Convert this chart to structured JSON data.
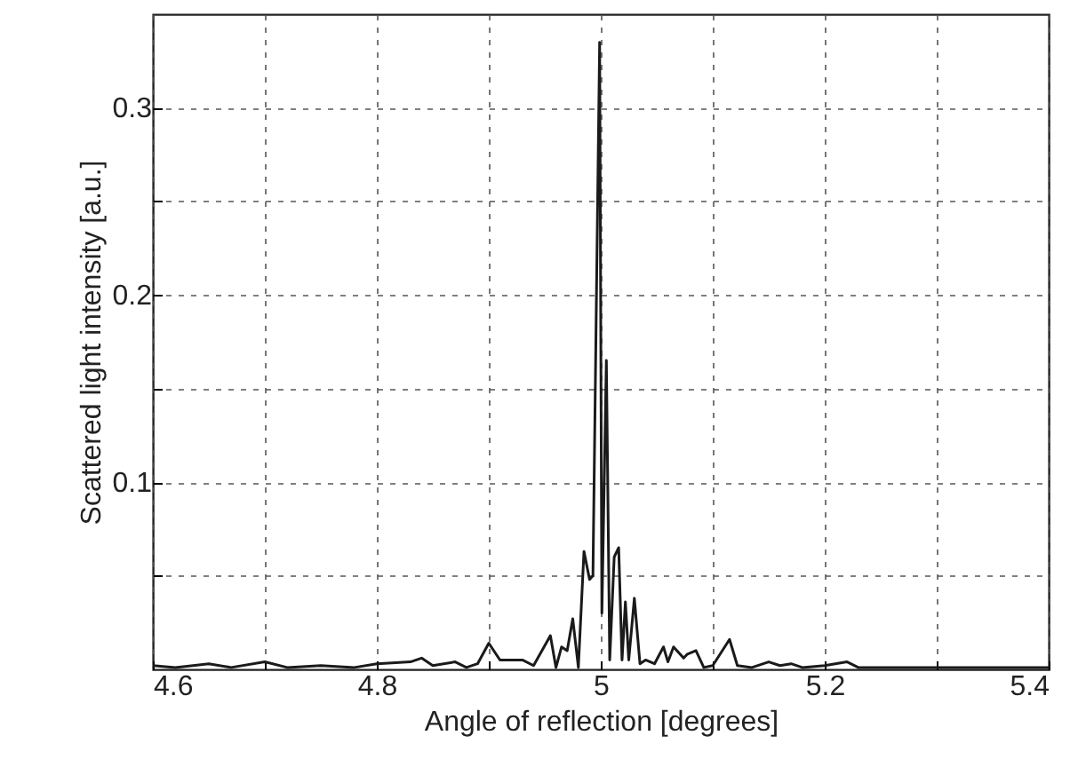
{
  "chart_data": {
    "type": "line",
    "xlabel": "Angle of reflection [degrees]",
    "ylabel": "Scattered light intensity [a.u.]",
    "xlim": [
      4.6,
      5.4
    ],
    "ylim": [
      0,
      0.35
    ],
    "xticks": [
      4.6,
      {
        "value": 4.7,
        "label": null
      },
      4.8,
      {
        "value": 4.9,
        "label": null
      },
      5,
      {
        "value": 5.1,
        "label": null
      },
      5.2,
      {
        "value": 5.3,
        "label": null
      },
      5.4
    ],
    "yticks": [
      {
        "value": 0.05,
        "label": null
      },
      0.1,
      {
        "value": 0.15,
        "label": null
      },
      0.2,
      {
        "value": 0.25,
        "label": null
      },
      0.3
    ],
    "grid": true,
    "line_style": "solid",
    "marker": "none",
    "series": [
      {
        "color": "#1a1a1a",
        "x": [
          4.6,
          4.62,
          4.65,
          4.67,
          4.7,
          4.72,
          4.75,
          4.78,
          4.8,
          4.83,
          4.84,
          4.85,
          4.87,
          4.88,
          4.89,
          4.9,
          4.91,
          4.93,
          4.94,
          4.955,
          4.96,
          4.965,
          4.97,
          4.975,
          4.98,
          4.985,
          4.99,
          4.993,
          4.999,
          5.001,
          5.005,
          5.008,
          5.012,
          5.016,
          5.019,
          5.022,
          5.025,
          5.03,
          5.035,
          5.04,
          5.048,
          5.056,
          5.06,
          5.065,
          5.074,
          5.077,
          5.085,
          5.092,
          5.1,
          5.115,
          5.122,
          5.135,
          5.15,
          5.16,
          5.17,
          5.18,
          5.2,
          5.22,
          5.23,
          5.26,
          5.3,
          5.35,
          5.4
        ],
        "values": [
          0.002,
          0.001,
          0.003,
          0.001,
          0.004,
          0.001,
          0.002,
          0.001,
          0.003,
          0.004,
          0.006,
          0.002,
          0.004,
          0.001,
          0.003,
          0.014,
          0.005,
          0.005,
          0.002,
          0.018,
          0.001,
          0.012,
          0.01,
          0.027,
          0.001,
          0.063,
          0.048,
          0.05,
          0.335,
          0.03,
          0.165,
          0.005,
          0.06,
          0.065,
          0.005,
          0.036,
          0.005,
          0.038,
          0.003,
          0.005,
          0.003,
          0.012,
          0.004,
          0.012,
          0.006,
          0.008,
          0.01,
          0.001,
          0.002,
          0.016,
          0.002,
          0.001,
          0.004,
          0.002,
          0.003,
          0.001,
          0.002,
          0.004,
          0.001,
          0.001,
          0.001,
          0.001,
          0.001
        ]
      }
    ]
  }
}
